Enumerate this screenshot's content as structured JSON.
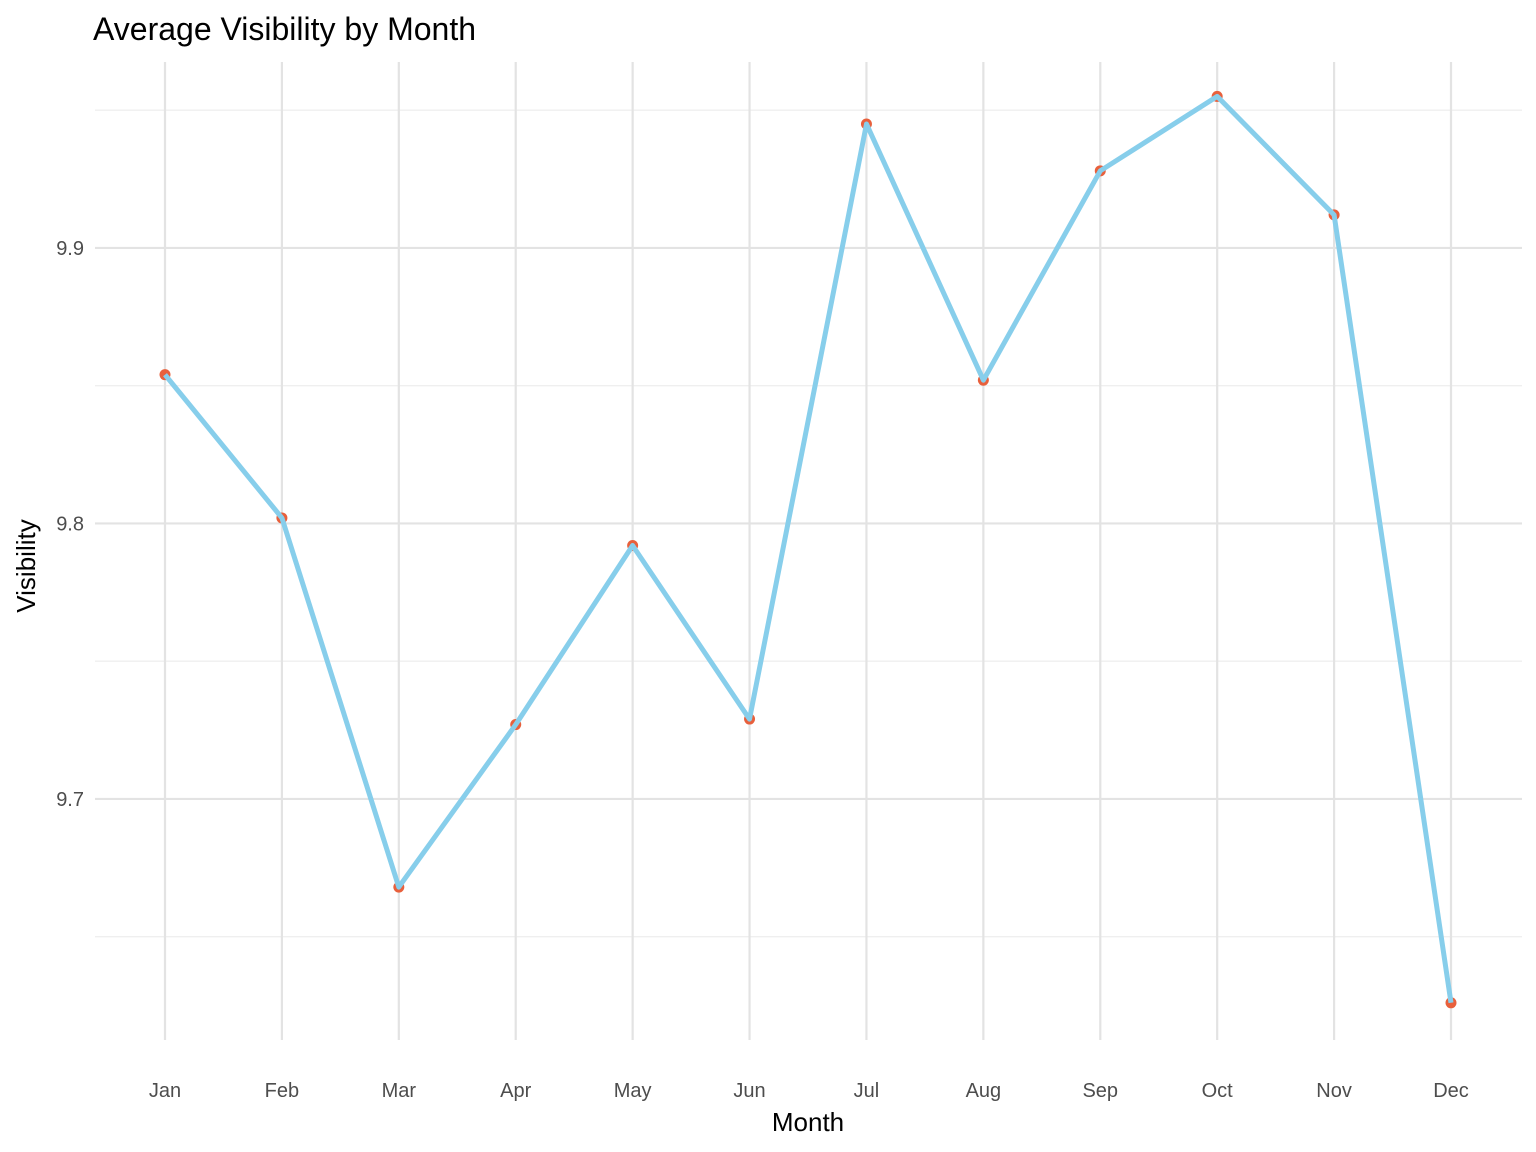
{
  "chart_data": {
    "type": "line",
    "title": "Average Visibility by Month",
    "xlabel": "Month",
    "ylabel": "Visibility",
    "categories": [
      "Jan",
      "Feb",
      "Mar",
      "Apr",
      "May",
      "Jun",
      "Jul",
      "Aug",
      "Sep",
      "Oct",
      "Nov",
      "Dec"
    ],
    "values": [
      9.854,
      9.802,
      9.668,
      9.727,
      9.792,
      9.729,
      9.945,
      9.852,
      9.928,
      9.955,
      9.912,
      9.626
    ],
    "ylim": [
      9.6125,
      9.9675
    ],
    "y_ticks": [
      9.7,
      9.8,
      9.9
    ],
    "y_tick_labels": [
      "9.7",
      "9.8",
      "9.9"
    ],
    "y_minor_ticks": [
      9.65,
      9.75,
      9.85,
      9.95
    ],
    "grid": true,
    "legend": "none",
    "colors": {
      "line": "#87CEEB",
      "point": "#E8603C",
      "grid_major": "#e3e3e3",
      "grid_minor": "#efefef"
    }
  }
}
